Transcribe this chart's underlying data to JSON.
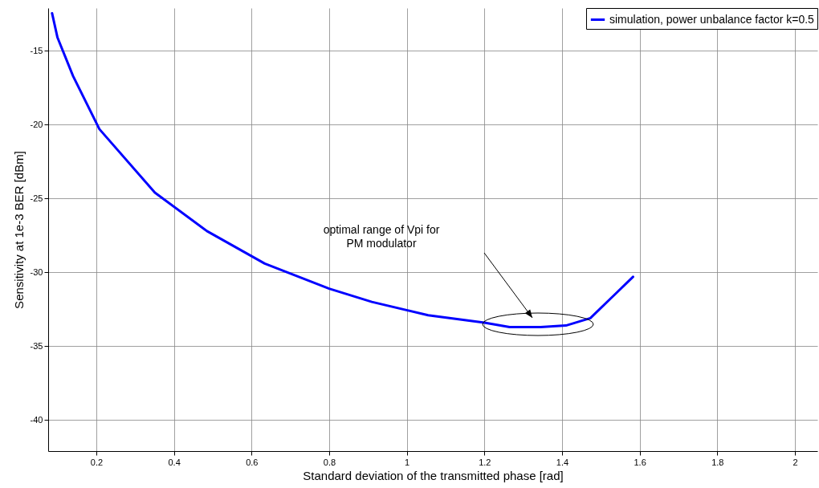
{
  "chart_data": {
    "type": "line",
    "xlabel": "Standard deviation of the transmitted phase [rad]",
    "ylabel": "Sensitivity at 1e-3 BER  [dBm]",
    "x": [
      0.086,
      0.1,
      0.14,
      0.208,
      0.351,
      0.485,
      0.6,
      0.634,
      0.8,
      0.91,
      1.055,
      1.2,
      1.265,
      1.345,
      1.41,
      1.473,
      1.583
    ],
    "series": [
      {
        "name": "simulation, power unbalance factor k=0.5",
        "color": "#0000ff",
        "values": [
          -12.45,
          -14.1,
          -16.7,
          -20.3,
          -24.6,
          -27.2,
          -28.9,
          -29.4,
          -31.1,
          -32.0,
          -32.9,
          -33.4,
          -33.7,
          -33.7,
          -33.6,
          -33.1,
          -30.3
        ]
      }
    ],
    "xlim": [
      0.076,
      2.058
    ],
    "ylim": [
      -42.1,
      -12.1
    ],
    "xticks": [
      0.2,
      0.4,
      0.6,
      0.8,
      1,
      1.2,
      1.4,
      1.6,
      1.8,
      2
    ],
    "yticks": [
      -40,
      -35,
      -30,
      -25,
      -20,
      -15
    ],
    "grid": true,
    "legend": "top right",
    "line_style": "solid",
    "annotations": [
      "optimal range of Vpi for\nPM modulator"
    ]
  }
}
